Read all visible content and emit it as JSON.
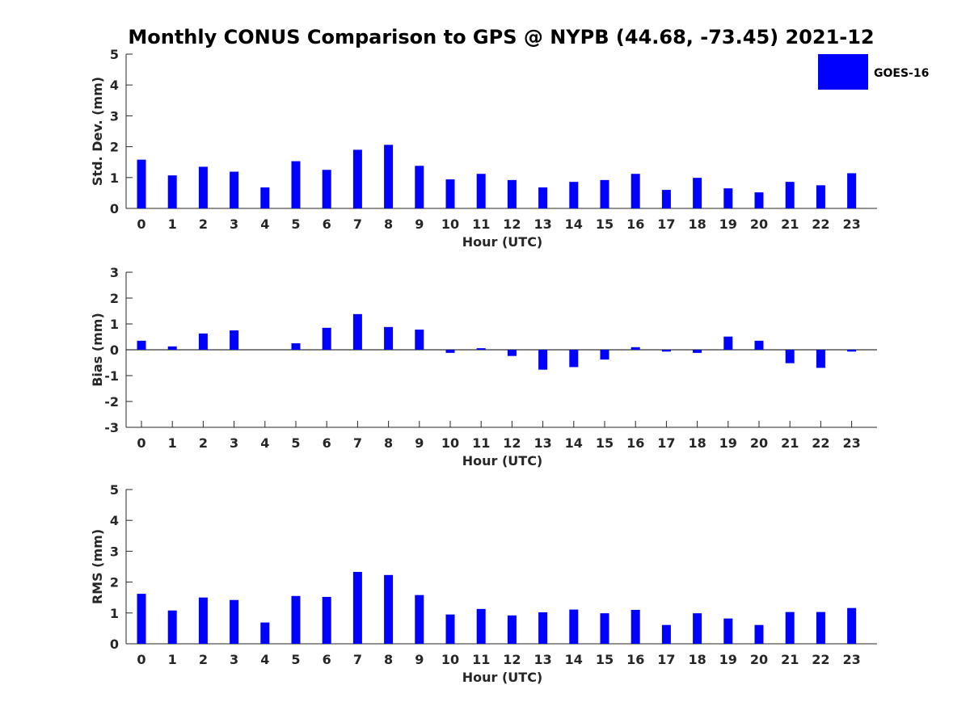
{
  "title": "Monthly CONUS Comparison to GPS @ NYPB (44.68, -73.45) 2021-12",
  "legend": {
    "label": "GOES-16",
    "color": "#0000ff"
  },
  "chart_data": [
    {
      "type": "bar",
      "name": "std-dev",
      "title": "",
      "xlabel": "Hour (UTC)",
      "ylabel": "Std. Dev. (mm)",
      "ylim": [
        0,
        5
      ],
      "yticks": [
        0,
        1,
        2,
        3,
        4,
        5
      ],
      "categories": [
        "0",
        "1",
        "2",
        "3",
        "4",
        "5",
        "6",
        "7",
        "8",
        "9",
        "10",
        "11",
        "12",
        "13",
        "14",
        "15",
        "16",
        "17",
        "18",
        "19",
        "20",
        "21",
        "22",
        "23"
      ],
      "series": [
        {
          "name": "GOES-16",
          "color": "#0000ff",
          "values": [
            1.58,
            1.07,
            1.35,
            1.19,
            0.68,
            1.53,
            1.25,
            1.9,
            2.06,
            1.38,
            0.94,
            1.12,
            0.92,
            0.68,
            0.86,
            0.92,
            1.12,
            0.6,
            0.99,
            0.65,
            0.52,
            0.86,
            0.75,
            1.14
          ]
        }
      ]
    },
    {
      "type": "bar",
      "name": "bias",
      "title": "",
      "xlabel": "Hour (UTC)",
      "ylabel": "Bias (mm)",
      "ylim": [
        -3,
        3
      ],
      "yticks": [
        -3,
        -2,
        -1,
        0,
        1,
        2,
        3
      ],
      "categories": [
        "0",
        "1",
        "2",
        "3",
        "4",
        "5",
        "6",
        "7",
        "8",
        "9",
        "10",
        "11",
        "12",
        "13",
        "14",
        "15",
        "16",
        "17",
        "18",
        "19",
        "20",
        "21",
        "22",
        "23"
      ],
      "series": [
        {
          "name": "GOES-16",
          "color": "#0000ff",
          "values": [
            0.35,
            0.13,
            0.63,
            0.75,
            0.0,
            0.25,
            0.85,
            1.38,
            0.88,
            0.78,
            -0.12,
            0.06,
            -0.24,
            -0.77,
            -0.67,
            -0.38,
            0.1,
            -0.07,
            -0.12,
            0.51,
            0.35,
            -0.52,
            -0.7,
            -0.07
          ]
        }
      ]
    },
    {
      "type": "bar",
      "name": "rms",
      "title": "",
      "xlabel": "Hour (UTC)",
      "ylabel": "RMS (mm)",
      "ylim": [
        0,
        5
      ],
      "yticks": [
        0,
        1,
        2,
        3,
        4,
        5
      ],
      "categories": [
        "0",
        "1",
        "2",
        "3",
        "4",
        "5",
        "6",
        "7",
        "8",
        "9",
        "10",
        "11",
        "12",
        "13",
        "14",
        "15",
        "16",
        "17",
        "18",
        "19",
        "20",
        "21",
        "22",
        "23"
      ],
      "series": [
        {
          "name": "GOES-16",
          "color": "#0000ff",
          "values": [
            1.62,
            1.08,
            1.5,
            1.42,
            0.69,
            1.55,
            1.52,
            2.33,
            2.23,
            1.58,
            0.95,
            1.13,
            0.92,
            1.02,
            1.11,
            0.99,
            1.1,
            0.61,
            0.99,
            0.82,
            0.61,
            1.03,
            1.03,
            1.16
          ]
        }
      ]
    }
  ]
}
